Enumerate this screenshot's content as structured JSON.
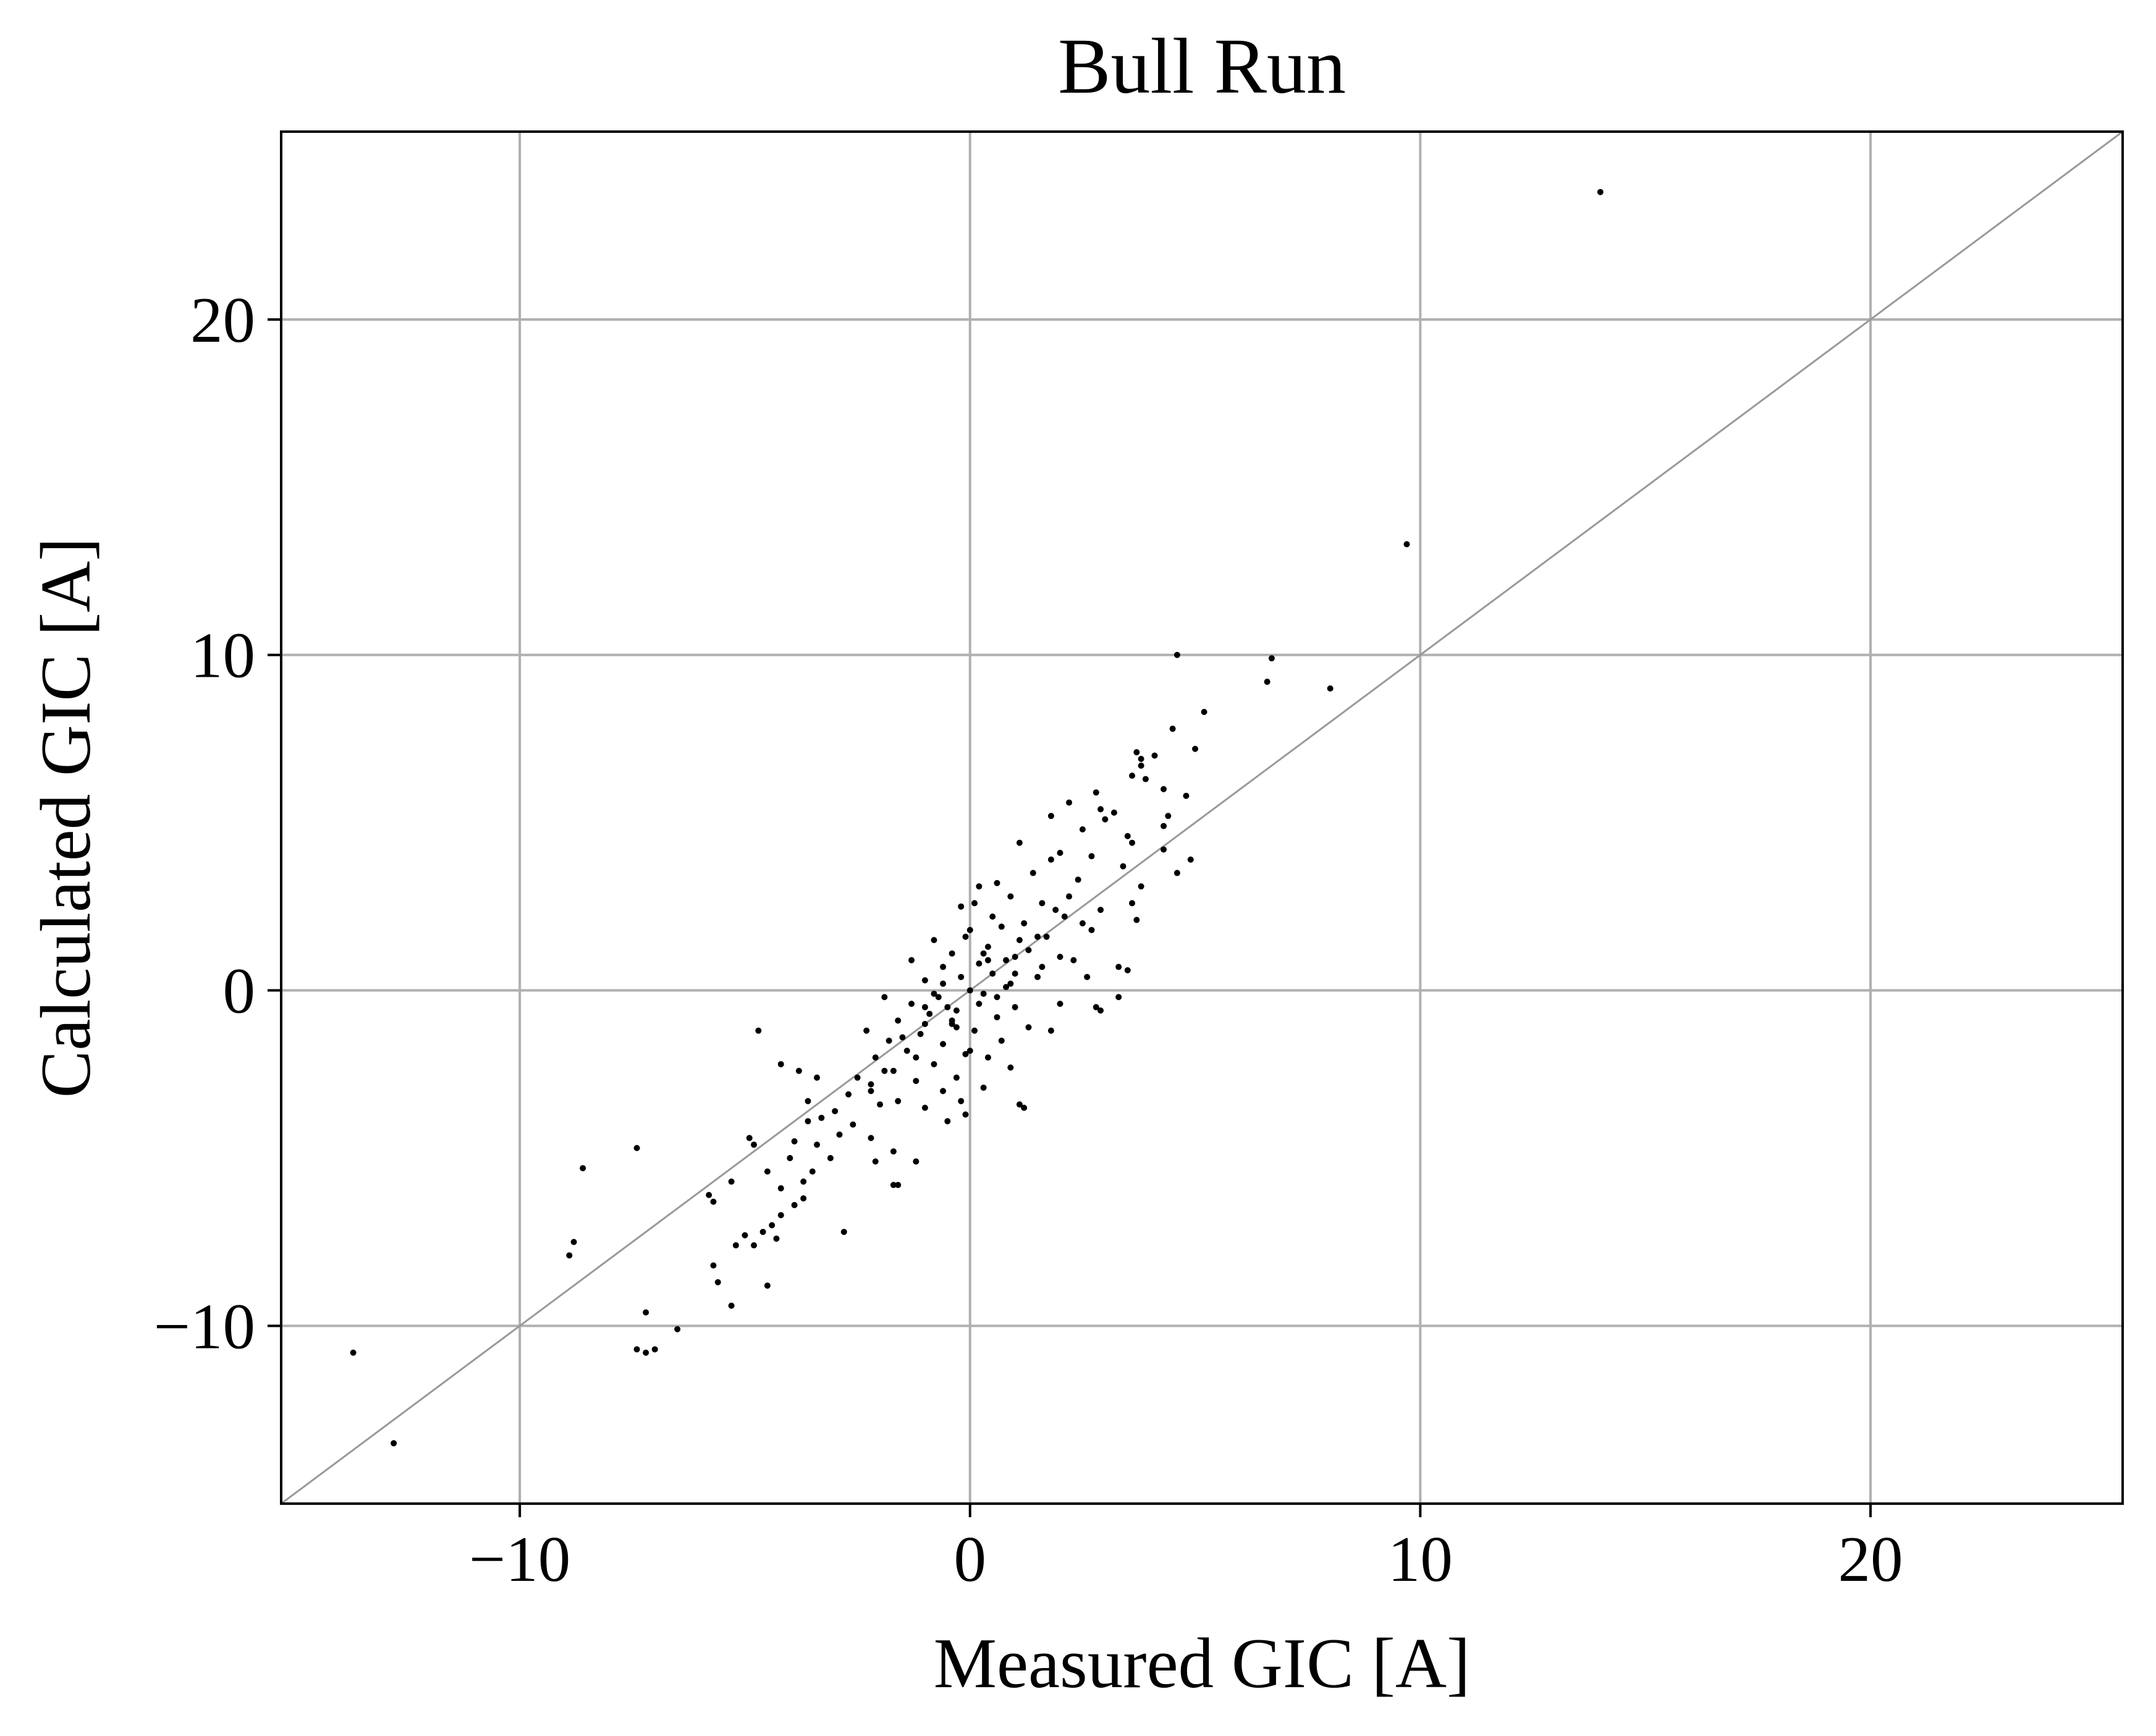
{
  "chart_data": {
    "type": "scatter",
    "title": "Bull Run",
    "xlabel": "Measured GIC [A]",
    "ylabel": "Calculated GIC [A]",
    "xlim": [
      -15.3,
      25.6
    ],
    "ylim": [
      -15.3,
      25.6
    ],
    "xticks": [
      -10,
      0,
      10,
      20
    ],
    "yticks": [
      -10,
      0,
      10,
      20
    ],
    "xtick_labels": [
      "−10",
      "0",
      "10",
      "20"
    ],
    "ytick_labels": [
      "−10",
      "0",
      "10",
      "20"
    ],
    "grid": true,
    "reference_line": {
      "type": "identity",
      "x": [
        -15.3,
        25.6
      ],
      "y": [
        -15.3,
        25.6
      ]
    },
    "series": [
      {
        "marker_color": "#000000",
        "points": [
          [
            14.0,
            23.8
          ],
          [
            9.7,
            13.3
          ],
          [
            4.6,
            10.0
          ],
          [
            6.7,
            9.9
          ],
          [
            6.6,
            9.2
          ],
          [
            8.0,
            9.0
          ],
          [
            5.2,
            8.3
          ],
          [
            4.5,
            7.8
          ],
          [
            5.0,
            7.2
          ],
          [
            3.7,
            7.1
          ],
          [
            3.8,
            6.9
          ],
          [
            4.1,
            7.0
          ],
          [
            2.2,
            5.6
          ],
          [
            3.6,
            6.4
          ],
          [
            3.8,
            6.7
          ],
          [
            3.9,
            6.3
          ],
          [
            2.8,
            5.9
          ],
          [
            4.3,
            6.0
          ],
          [
            4.8,
            5.8
          ],
          [
            2.9,
            5.4
          ],
          [
            3.2,
            5.3
          ],
          [
            4.4,
            5.2
          ],
          [
            4.3,
            4.9
          ],
          [
            1.8,
            5.2
          ],
          [
            2.5,
            4.8
          ],
          [
            3.0,
            5.1
          ],
          [
            3.5,
            4.6
          ],
          [
            1.1,
            4.4
          ],
          [
            2.0,
            4.1
          ],
          [
            4.3,
            4.2
          ],
          [
            4.9,
            3.9
          ],
          [
            4.6,
            3.5
          ],
          [
            3.6,
            4.4
          ],
          [
            2.7,
            4.0
          ],
          [
            3.4,
            3.7
          ],
          [
            2.4,
            3.3
          ],
          [
            3.8,
            3.1
          ],
          [
            3.6,
            2.6
          ],
          [
            3.7,
            2.1
          ],
          [
            2.9,
            2.4
          ],
          [
            2.5,
            2.0
          ],
          [
            3.3,
            0.7
          ],
          [
            3.5,
            0.6
          ],
          [
            3.3,
            -0.2
          ],
          [
            2.8,
            -0.5
          ],
          [
            2.7,
            1.8
          ],
          [
            1.8,
            3.9
          ],
          [
            1.4,
            3.5
          ],
          [
            0.6,
            3.2
          ],
          [
            -0.2,
            2.5
          ],
          [
            0.1,
            2.6
          ],
          [
            0.2,
            3.1
          ],
          [
            0.9,
            2.8
          ],
          [
            1.6,
            2.6
          ],
          [
            2.1,
            2.2
          ],
          [
            1.1,
            1.5
          ],
          [
            0.7,
            1.9
          ],
          [
            0.4,
            1.3
          ],
          [
            -0.1,
            1.6
          ],
          [
            -0.4,
            1.1
          ],
          [
            0.2,
            0.8
          ],
          [
            0.8,
            0.9
          ],
          [
            1.3,
            1.2
          ],
          [
            1.7,
            1.6
          ],
          [
            2.0,
            1.0
          ],
          [
            1.5,
            0.4
          ],
          [
            0.9,
            0.2
          ],
          [
            0.3,
            -0.1
          ],
          [
            -0.2,
            0.4
          ],
          [
            -0.6,
            0.7
          ],
          [
            -1.0,
            0.3
          ],
          [
            -0.7,
            -0.2
          ],
          [
            -0.3,
            -0.6
          ],
          [
            0.2,
            -0.4
          ],
          [
            0.6,
            -0.8
          ],
          [
            1.0,
            -0.5
          ],
          [
            1.3,
            -1.1
          ],
          [
            0.7,
            -1.5
          ],
          [
            0.1,
            -1.2
          ],
          [
            -0.4,
            -1.0
          ],
          [
            -0.9,
            -0.7
          ],
          [
            -1.3,
            -0.4
          ],
          [
            -1.6,
            -0.9
          ],
          [
            -1.1,
            -1.3
          ],
          [
            -0.6,
            -1.6
          ],
          [
            -0.1,
            -1.9
          ],
          [
            0.4,
            -2.0
          ],
          [
            0.9,
            -2.3
          ],
          [
            -0.3,
            -2.6
          ],
          [
            -0.8,
            -2.2
          ],
          [
            -1.4,
            -1.8
          ],
          [
            -1.8,
            -1.5
          ],
          [
            -2.1,
            -2.0
          ],
          [
            -1.7,
            -2.4
          ],
          [
            -1.2,
            -2.7
          ],
          [
            -0.6,
            -3.0
          ],
          [
            -0.2,
            -3.3
          ],
          [
            0.3,
            -2.9
          ],
          [
            1.1,
            -3.4
          ],
          [
            1.2,
            -3.5
          ],
          [
            1.6,
            0.7
          ],
          [
            2.3,
            0.9
          ],
          [
            2.6,
            0.4
          ],
          [
            2.0,
            -0.4
          ],
          [
            1.8,
            -1.2
          ],
          [
            2.9,
            -0.6
          ],
          [
            0.5,
            2.2
          ],
          [
            -0.8,
            1.5
          ],
          [
            -1.3,
            0.9
          ],
          [
            -1.9,
            -0.2
          ],
          [
            -2.3,
            -1.2
          ],
          [
            -2.5,
            -2.6
          ],
          [
            -2.2,
            -3.0
          ],
          [
            -1.6,
            -3.3
          ],
          [
            -1.0,
            -3.5
          ],
          [
            -0.5,
            -3.9
          ],
          [
            -0.1,
            -3.7
          ],
          [
            -2.0,
            -3.4
          ],
          [
            -2.7,
            -3.1
          ],
          [
            -3.0,
            -3.6
          ],
          [
            -2.6,
            -4.0
          ],
          [
            -2.2,
            -4.4
          ],
          [
            -1.7,
            -4.8
          ],
          [
            -2.1,
            -5.1
          ],
          [
            -1.6,
            -5.8
          ],
          [
            -1.2,
            -5.1
          ],
          [
            -2.9,
            -4.3
          ],
          [
            -3.3,
            -3.8
          ],
          [
            -3.6,
            -3.9
          ],
          [
            -3.4,
            -4.6
          ],
          [
            -3.1,
            -5.0
          ],
          [
            -3.5,
            -5.4
          ],
          [
            -3.9,
            -4.5
          ],
          [
            -4.0,
            -5.0
          ],
          [
            -3.7,
            -5.7
          ],
          [
            -4.2,
            -5.9
          ],
          [
            -4.5,
            -5.4
          ],
          [
            -3.7,
            -6.2
          ],
          [
            -3.9,
            -6.4
          ],
          [
            -4.2,
            -6.7
          ],
          [
            -4.4,
            -7.0
          ],
          [
            -4.3,
            -7.4
          ],
          [
            -4.6,
            -7.2
          ],
          [
            -4.8,
            -7.6
          ],
          [
            -4.5,
            -8.8
          ],
          [
            -5.0,
            -7.3
          ],
          [
            -5.2,
            -7.6
          ],
          [
            -5.3,
            -9.4
          ],
          [
            -5.7,
            -8.2
          ],
          [
            -5.6,
            -8.7
          ],
          [
            -5.8,
            -6.1
          ],
          [
            -5.7,
            -6.3
          ],
          [
            -5.3,
            -5.7
          ],
          [
            -4.9,
            -4.4
          ],
          [
            -4.8,
            -4.6
          ],
          [
            -4.2,
            -2.2
          ],
          [
            -3.8,
            -2.4
          ],
          [
            -3.4,
            -2.6
          ],
          [
            -3.6,
            -3.3
          ],
          [
            -4.7,
            -1.2
          ],
          [
            -2.8,
            -7.2
          ],
          [
            -1.7,
            -5.8
          ],
          [
            -7.4,
            -4.7
          ],
          [
            -8.6,
            -5.3
          ],
          [
            -8.8,
            -7.5
          ],
          [
            -8.9,
            -7.9
          ],
          [
            -7.2,
            -9.6
          ],
          [
            -7.4,
            -10.7
          ],
          [
            -7.2,
            -10.8
          ],
          [
            -7.0,
            -10.7
          ],
          [
            -6.5,
            -10.1
          ],
          [
            -13.7,
            -10.8
          ],
          [
            -12.8,
            -13.5
          ],
          [
            0.0,
            0.0
          ],
          [
            0.5,
            0.5
          ],
          [
            -0.5,
            -0.5
          ],
          [
            1.0,
            1.0
          ],
          [
            -1.0,
            -1.0
          ],
          [
            1.5,
            1.6
          ],
          [
            -1.5,
            -1.4
          ],
          [
            0.3,
            1.1
          ],
          [
            -0.3,
            -1.1
          ],
          [
            0.8,
            0.1
          ],
          [
            -0.8,
            -0.1
          ],
          [
            1.2,
            2.0
          ],
          [
            -1.2,
            -2.0
          ],
          [
            0.0,
            1.8
          ],
          [
            0.0,
            -1.8
          ],
          [
            2.2,
            2.8
          ],
          [
            -2.2,
            -2.8
          ],
          [
            0.6,
            -0.2
          ],
          [
            -0.6,
            0.2
          ],
          [
            1.9,
            2.4
          ],
          [
            -1.9,
            -2.4
          ],
          [
            1.0,
            0.5
          ],
          [
            -1.0,
            -0.5
          ],
          [
            0.4,
            0.9
          ],
          [
            -0.4,
            -0.9
          ]
        ]
      }
    ]
  }
}
